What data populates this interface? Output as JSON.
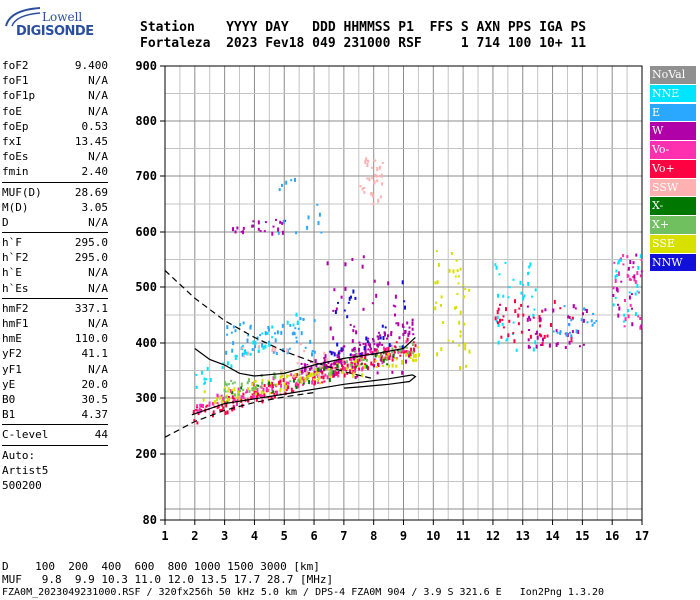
{
  "logo": {
    "line1": "Lowell",
    "line2": "DIGISONDE"
  },
  "header": {
    "row1": "Station    YYYY DAY   DDD HHMMSS P1  FFS S AXN PPS IGA PS",
    "row2": "Fortaleza  2023 Fev18 049 231000 RSF     1 714 100 10+ 11"
  },
  "params": [
    {
      "group": [
        {
          "k": "foF2",
          "v": "9.400"
        },
        {
          "k": "foF1",
          "v": "N/A"
        },
        {
          "k": "foF1p",
          "v": "N/A"
        },
        {
          "k": "foE",
          "v": "N/A"
        },
        {
          "k": "foEp",
          "v": "0.53"
        },
        {
          "k": "fxI",
          "v": "13.45"
        },
        {
          "k": "foEs",
          "v": "N/A"
        },
        {
          "k": "fmin",
          "v": "2.40"
        }
      ]
    },
    {
      "group": [
        {
          "k": "MUF(D)",
          "v": "28.69"
        },
        {
          "k": "M(D)",
          "v": "3.05"
        },
        {
          "k": "D",
          "v": "N/A"
        }
      ]
    },
    {
      "group": [
        {
          "k": "h`F",
          "v": "295.0"
        },
        {
          "k": "h`F2",
          "v": "295.0"
        },
        {
          "k": "h`E",
          "v": "N/A"
        },
        {
          "k": "h`Es",
          "v": "N/A"
        }
      ]
    },
    {
      "group": [
        {
          "k": "hmF2",
          "v": "337.1"
        },
        {
          "k": "hmF1",
          "v": "N/A"
        },
        {
          "k": "hmE",
          "v": "110.0"
        },
        {
          "k": "yF2",
          "v": "41.1"
        },
        {
          "k": "yF1",
          "v": "N/A"
        },
        {
          "k": "yE",
          "v": "20.0"
        },
        {
          "k": "B0",
          "v": "30.5"
        },
        {
          "k": "B1",
          "v": "4.37"
        }
      ]
    },
    {
      "group": [
        {
          "k": "C-level",
          "v": "44"
        }
      ]
    }
  ],
  "auto": [
    "Auto:",
    "Artist5",
    "500200"
  ],
  "legend": [
    {
      "label": "NoVal",
      "color": "#909090"
    },
    {
      "label": "NNE",
      "color": "#00e5ff"
    },
    {
      "label": "E",
      "color": "#2aa8ff"
    },
    {
      "label": "W",
      "color": "#b000a8"
    },
    {
      "label": "Vo-",
      "color": "#ff30b0"
    },
    {
      "label": "Vo+",
      "color": "#ff0040"
    },
    {
      "label": "SSW",
      "color": "#ffb0b0"
    },
    {
      "label": "X-",
      "color": "#007800"
    },
    {
      "label": "X+",
      "color": "#70c060"
    },
    {
      "label": "SSE",
      "color": "#d8e000"
    },
    {
      "label": "NNW",
      "color": "#1010d8"
    }
  ],
  "footer": {
    "line1": "D    100  200  400  600  800 1000 1500 3000 [km]",
    "line2": "MUF   9.8  9.9 10.3 11.0 12.0 13.5 17.7 28.7 [MHz]",
    "line3": "FZA0M_2023049231000.RSF / 320fx256h 50 kHz 5.0 km / DPS-4 FZA0M 904 / 3.9 S 321.6 E   Ion2Png 1.3.20"
  },
  "chart_data": {
    "type": "scatter",
    "xlim": [
      1,
      17
    ],
    "ylim": [
      80,
      900
    ],
    "xticks": [
      1,
      2,
      3,
      4,
      5,
      6,
      7,
      8,
      9,
      10,
      11,
      12,
      13,
      14,
      15,
      16,
      17
    ],
    "yticks": [
      80,
      200,
      300,
      400,
      500,
      600,
      700,
      800,
      900
    ],
    "grid": true,
    "legend_position": "right",
    "clusters": [
      {
        "name": "Vo+",
        "color": "#ff0040",
        "x": [
          1.9,
          9.4
        ],
        "y": [
          270,
          400
        ],
        "count": 220
      },
      {
        "name": "Vo-",
        "color": "#ff30b0",
        "x": [
          2.0,
          9.2
        ],
        "y": [
          285,
          395
        ],
        "count": 120
      },
      {
        "name": "W",
        "color": "#b000a8",
        "x": [
          5.5,
          9.3
        ],
        "y": [
          350,
          430
        ],
        "count": 110
      },
      {
        "name": "SSE",
        "color": "#d8e000",
        "x": [
          2.2,
          9.5
        ],
        "y": [
          300,
          380
        ],
        "count": 110
      },
      {
        "name": "X+",
        "color": "#70c060",
        "x": [
          2.5,
          9.5
        ],
        "y": [
          310,
          400
        ],
        "count": 70
      },
      {
        "name": "X-",
        "color": "#007800",
        "x": [
          3.0,
          9.0
        ],
        "y": [
          300,
          380
        ],
        "count": 25
      },
      {
        "name": "E",
        "color": "#2aa8ff",
        "x": [
          3.0,
          6.0
        ],
        "y": [
          380,
          450
        ],
        "count": 60
      },
      {
        "name": "NNE",
        "color": "#00e5ff",
        "x": [
          2.0,
          5.5
        ],
        "y": [
          330,
          450
        ],
        "count": 35
      },
      {
        "name": "SSW",
        "color": "#ffb0b0",
        "x": [
          3.5,
          6.5
        ],
        "y": [
          340,
          400
        ],
        "count": 25
      },
      {
        "name": "SSW",
        "color": "#ffb0b0",
        "x": [
          7.5,
          8.3
        ],
        "y": [
          650,
          740
        ],
        "count": 30
      },
      {
        "name": "W",
        "color": "#b000a8",
        "x": [
          3.0,
          5.0
        ],
        "y": [
          600,
          625
        ],
        "count": 22
      },
      {
        "name": "W",
        "color": "#b000a8",
        "x": [
          6.4,
          9.2
        ],
        "y": [
          340,
          560
        ],
        "count": 50
      },
      {
        "name": "NNW",
        "color": "#1010d8",
        "x": [
          6.4,
          9.2
        ],
        "y": [
          380,
          520
        ],
        "count": 30
      },
      {
        "name": "E",
        "color": "#2aa8ff",
        "x": [
          4.5,
          6.5
        ],
        "y": [
          600,
          700
        ],
        "count": 14
      },
      {
        "name": "SSE",
        "color": "#d8e000",
        "x": [
          10.0,
          11.2
        ],
        "y": [
          350,
          580
        ],
        "count": 40
      },
      {
        "name": "NNE",
        "color": "#00e5ff",
        "x": [
          12.0,
          13.5
        ],
        "y": [
          380,
          560
        ],
        "count": 35
      },
      {
        "name": "Vo+",
        "color": "#ff0040",
        "x": [
          12.0,
          14.8
        ],
        "y": [
          400,
          480
        ],
        "count": 45
      },
      {
        "name": "W",
        "color": "#b000a8",
        "x": [
          13.0,
          15.2
        ],
        "y": [
          390,
          470
        ],
        "count": 35
      },
      {
        "name": "E",
        "color": "#2aa8ff",
        "x": [
          14.0,
          15.5
        ],
        "y": [
          410,
          470
        ],
        "count": 20
      },
      {
        "name": "Vo-",
        "color": "#ff30b0",
        "x": [
          16.0,
          17.0
        ],
        "y": [
          420,
          560
        ],
        "count": 30
      },
      {
        "name": "W",
        "color": "#b000a8",
        "x": [
          16.0,
          17.0
        ],
        "y": [
          430,
          590
        ],
        "count": 20
      },
      {
        "name": "NNE",
        "color": "#00e5ff",
        "x": [
          16.0,
          17.0
        ],
        "y": [
          420,
          560
        ],
        "count": 18
      }
    ],
    "profile_curve": [
      [
        1.9,
        270
      ],
      [
        3,
        290
      ],
      [
        5,
        307
      ],
      [
        7,
        325
      ],
      [
        8.5,
        335
      ],
      [
        9.3,
        342
      ],
      [
        9.4,
        339
      ],
      [
        9.2,
        330
      ],
      [
        8.5,
        325
      ],
      [
        7.5,
        320
      ],
      [
        7,
        318
      ]
    ],
    "dashed_upper": [
      [
        1,
        530
      ],
      [
        2,
        480
      ],
      [
        3,
        440
      ],
      [
        4,
        410
      ],
      [
        5,
        385
      ],
      [
        6,
        365
      ],
      [
        7,
        348
      ],
      [
        8,
        335
      ]
    ],
    "dashed_lower": [
      [
        1,
        230
      ],
      [
        2,
        258
      ],
      [
        3,
        278
      ],
      [
        4,
        292
      ],
      [
        5,
        302
      ],
      [
        6,
        310
      ]
    ],
    "trace_line": [
      [
        2,
        390
      ],
      [
        2.5,
        370
      ],
      [
        3,
        360
      ],
      [
        3.5,
        345
      ],
      [
        4,
        340
      ],
      [
        5,
        345
      ],
      [
        6,
        360
      ],
      [
        7,
        372
      ],
      [
        8,
        380
      ],
      [
        9,
        390
      ],
      [
        9.4,
        410
      ]
    ]
  }
}
